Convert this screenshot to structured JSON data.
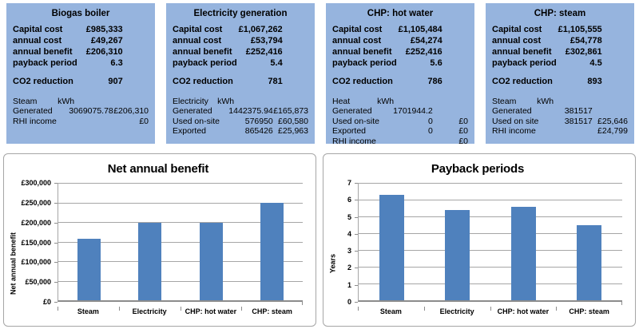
{
  "colors": {
    "panel_bg": "#96B4DE",
    "bar": "#4F81BD",
    "gridline": "#A6A6A6",
    "axis": "#8C8C8C"
  },
  "panels": [
    {
      "title": "Biogas boiler",
      "metrics": [
        {
          "label": "Capital cost",
          "value": "£985,333"
        },
        {
          "label": "annual cost",
          "value": "£49,267"
        },
        {
          "label": "annual benefit",
          "value": "£206,310"
        },
        {
          "label": "payback period",
          "value": "6.3"
        }
      ],
      "co2": {
        "label": "CO2 reduction",
        "value": "907"
      },
      "detail_header": {
        "label": "Steam",
        "unit": "kWh"
      },
      "details": [
        {
          "label": "Generated",
          "qty": "3069075.78",
          "money": "£206,310"
        },
        {
          "label": "RHI income",
          "qty": "",
          "money": "£0"
        }
      ]
    },
    {
      "title": "Electricity generation",
      "metrics": [
        {
          "label": "Capital cost",
          "value": "£1,067,262"
        },
        {
          "label": "annual cost",
          "value": "£53,794"
        },
        {
          "label": "annual benefit",
          "value": "£252,416"
        },
        {
          "label": "payback period",
          "value": "5.4"
        }
      ],
      "co2": {
        "label": "CO2 reduction",
        "value": "781"
      },
      "detail_header": {
        "label": "Electricity",
        "unit": "kWh"
      },
      "details": [
        {
          "label": "Generated",
          "qty": "1442375.94",
          "money": "£165,873"
        },
        {
          "label": "Used on-site",
          "qty": "576950",
          "money": "£60,580"
        },
        {
          "label": "Exported",
          "qty": "865426",
          "money": "£25,963"
        }
      ]
    },
    {
      "title": "CHP: hot water",
      "metrics": [
        {
          "label": "Capital cost",
          "value": "£1,105,484"
        },
        {
          "label": "annual cost",
          "value": "£54,274"
        },
        {
          "label": "annual benefit",
          "value": "£252,416"
        },
        {
          "label": "payback period",
          "value": "5.6"
        }
      ],
      "co2": {
        "label": "CO2 reduction",
        "value": "786"
      },
      "detail_header": {
        "label": "Heat",
        "unit": "kWh"
      },
      "details": [
        {
          "label": "Generated",
          "qty": "1701944.2",
          "money": ""
        },
        {
          "label": "Used on-site",
          "qty": "0",
          "money": "£0"
        },
        {
          "label": "Exported",
          "qty": "0",
          "money": "£0"
        },
        {
          "label": "RHI income",
          "qty": "",
          "money": "£0"
        }
      ]
    },
    {
      "title": "CHP: steam",
      "metrics": [
        {
          "label": "Capital cost",
          "value": "£1,105,555"
        },
        {
          "label": "annual cost",
          "value": "£54,778"
        },
        {
          "label": "annual benefit",
          "value": "£302,861"
        },
        {
          "label": "payback period",
          "value": "4.5"
        }
      ],
      "co2": {
        "label": "CO2 reduction",
        "value": "893"
      },
      "detail_header": {
        "label": "Steam",
        "unit": "kWh"
      },
      "details": [
        {
          "label": "Generated",
          "qty": "381517",
          "money": ""
        },
        {
          "label": "Used on site",
          "qty": "381517",
          "money": "£25,646"
        },
        {
          "label": "RHI income",
          "qty": "",
          "money": "£24,799"
        }
      ]
    }
  ],
  "chart_data": [
    {
      "type": "bar",
      "title": "Net annual benefit",
      "xlabel": "",
      "ylabel": "Net annual benefit",
      "categories": [
        "Steam",
        "Electricity",
        "CHP: hot water",
        "CHP: steam"
      ],
      "values": [
        157043,
        198622,
        198142,
        248083
      ],
      "ylim": [
        0,
        300000
      ],
      "ytick_step": 50000,
      "ytick_labels": [
        "£0",
        "£50,000",
        "£100,000",
        "£150,000",
        "£200,000",
        "£250,000",
        "£300,000"
      ],
      "grid": true,
      "legend": "none",
      "bar_color": "#4F81BD"
    },
    {
      "type": "bar",
      "title": "Payback periods",
      "xlabel": "",
      "ylabel": "Years",
      "categories": [
        "Steam",
        "Electricity",
        "CHP: hot water",
        "CHP: steam"
      ],
      "values": [
        6.27,
        5.37,
        5.58,
        4.46
      ],
      "ylim": [
        0,
        7
      ],
      "ytick_step": 1,
      "ytick_labels": [
        "0",
        "1",
        "2",
        "3",
        "4",
        "5",
        "6",
        "7"
      ],
      "grid": true,
      "legend": "none",
      "bar_color": "#4F81BD"
    }
  ]
}
